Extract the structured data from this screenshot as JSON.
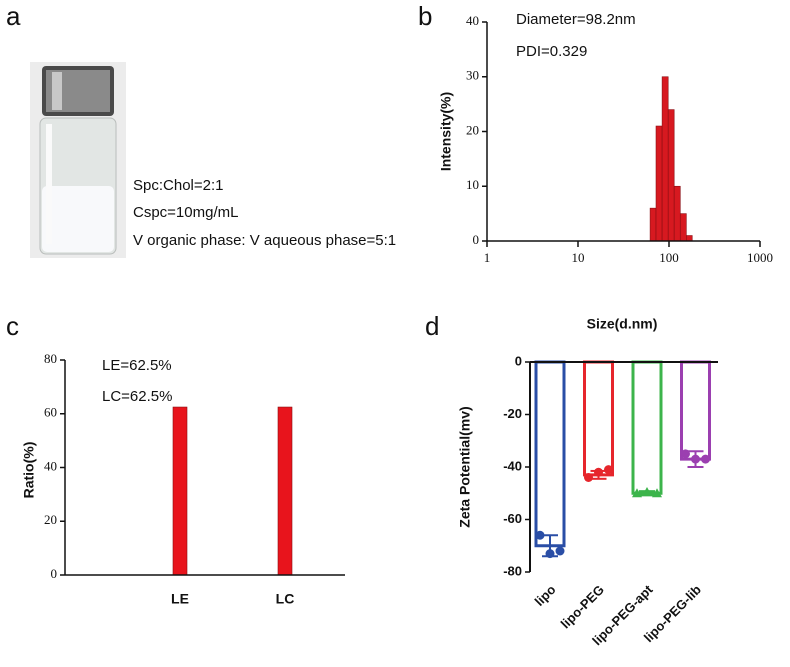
{
  "photo_panel": {
    "label": "a",
    "lines": [
      "Spc:Chol=2:1",
      "Cspc=10mg/mL",
      "V organic phase: V aqueous phase=5:1"
    ]
  },
  "chart_data": [
    {
      "type": "histogram",
      "panel_label": "b",
      "annotations": [
        "Diameter=98.2nm",
        "PDI=0.329"
      ],
      "ylabel": "Intensity(%)",
      "log_x": true,
      "xlim": [
        1,
        1000
      ],
      "xticks": [
        1,
        10,
        100,
        1000
      ],
      "ylim": [
        0,
        40
      ],
      "yticks": [
        0,
        10,
        20,
        30,
        40
      ],
      "bins": [
        62,
        72,
        84,
        98,
        114,
        133,
        155,
        180
      ],
      "counts": [
        6,
        21,
        30,
        24,
        10,
        5,
        1
      ],
      "color": "#d71920"
    },
    {
      "type": "bar",
      "panel_label": "c",
      "annotations": [
        "LE=62.5%",
        "LC=62.5%"
      ],
      "ylabel": "Ratio(%)",
      "categories": [
        "LE",
        "LC"
      ],
      "values": [
        62.5,
        62.5
      ],
      "color": "#e8141c",
      "ylim": [
        0,
        80
      ],
      "yticks": [
        0,
        20,
        40,
        60,
        80
      ]
    },
    {
      "type": "dotbar",
      "panel_label": "d",
      "title": "Size(d.nm)",
      "ylabel": "Zeta Potential(mv)",
      "categories": [
        "lipo",
        "lipo-PEG",
        "lipo-PEG-apt",
        "lipo-PEG-lib"
      ],
      "values": [
        -70,
        -43,
        -50,
        -37
      ],
      "errors": [
        4,
        1.5,
        0.8,
        3
      ],
      "points": [
        [
          -66,
          -73,
          -72
        ],
        [
          -44,
          -42,
          -41
        ],
        [
          -50,
          -49.5,
          -50
        ],
        [
          -35,
          -37,
          -37
        ]
      ],
      "colors": [
        "#2a4ea6",
        "#e6262c",
        "#3cb44b",
        "#9b3fb0"
      ],
      "ylim": [
        -80,
        0
      ],
      "yticks": [
        0,
        -20,
        -40,
        -60,
        -80
      ]
    }
  ]
}
